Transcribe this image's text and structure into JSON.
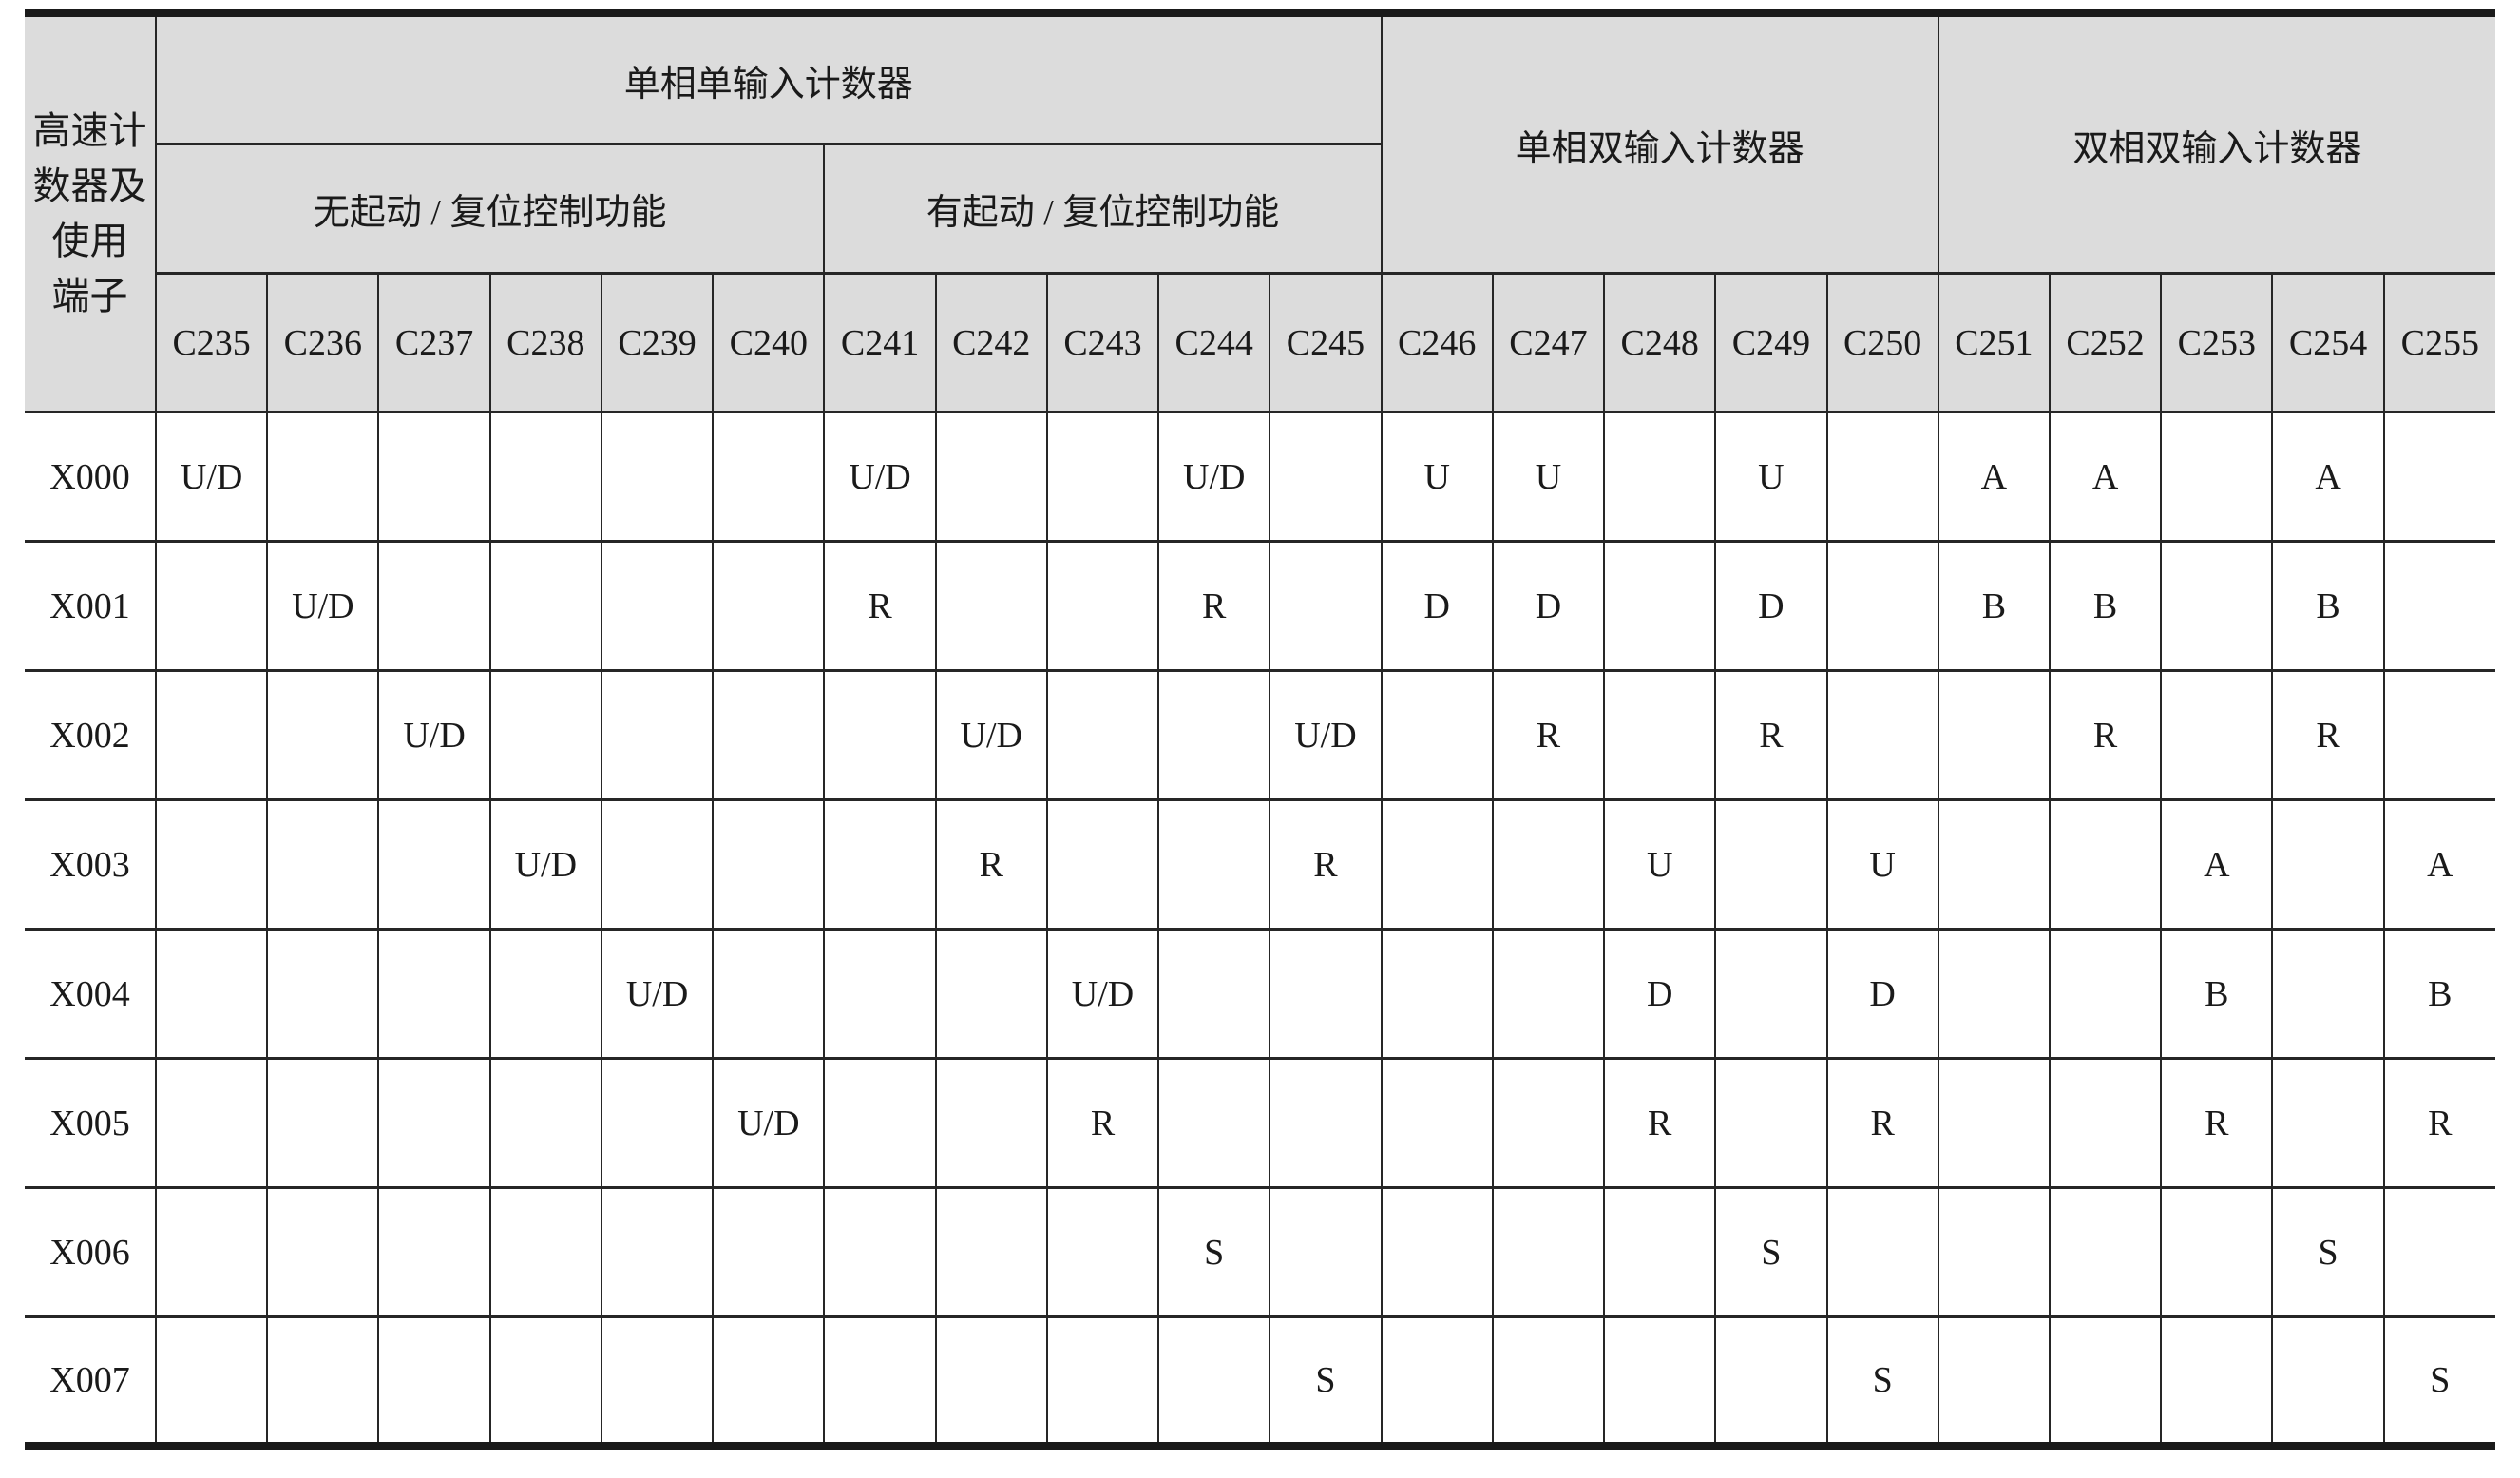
{
  "table": {
    "corner": {
      "lines": [
        "高速计",
        "数器及",
        "使用",
        "端子"
      ]
    },
    "groups": [
      {
        "label": "单相单输入计数器"
      },
      {
        "label": "单相双输入计数器"
      },
      {
        "label": "双相双输入计数器"
      }
    ],
    "subgroups": [
      {
        "label": "无起动 / 复位控制功能"
      },
      {
        "label": "有起动 / 复位控制功能"
      }
    ],
    "columns": [
      "C235",
      "C236",
      "C237",
      "C238",
      "C239",
      "C240",
      "C241",
      "C242",
      "C243",
      "C244",
      "C245",
      "C246",
      "C247",
      "C248",
      "C249",
      "C250",
      "C251",
      "C252",
      "C253",
      "C254",
      "C255"
    ],
    "rows": [
      {
        "label": "X000",
        "values": [
          "U/D",
          "",
          "",
          "",
          "",
          "",
          "U/D",
          "",
          "",
          "U/D",
          "",
          "U",
          "U",
          "",
          "U",
          "",
          "A",
          "A",
          "",
          "A",
          ""
        ]
      },
      {
        "label": "X001",
        "values": [
          "",
          "U/D",
          "",
          "",
          "",
          "",
          "R",
          "",
          "",
          "R",
          "",
          "D",
          "D",
          "",
          "D",
          "",
          "B",
          "B",
          "",
          "B",
          ""
        ]
      },
      {
        "label": "X002",
        "values": [
          "",
          "",
          "U/D",
          "",
          "",
          "",
          "",
          "U/D",
          "",
          "",
          "U/D",
          "",
          "R",
          "",
          "R",
          "",
          "",
          "R",
          "",
          "R",
          ""
        ]
      },
      {
        "label": "X003",
        "values": [
          "",
          "",
          "",
          "U/D",
          "",
          "",
          "",
          "R",
          "",
          "",
          "R",
          "",
          "",
          "U",
          "",
          "U",
          "",
          "",
          "A",
          "",
          "A"
        ]
      },
      {
        "label": "X004",
        "values": [
          "",
          "",
          "",
          "",
          "U/D",
          "",
          "",
          "",
          "U/D",
          "",
          "",
          "",
          "",
          "D",
          "",
          "D",
          "",
          "",
          "B",
          "",
          "B"
        ]
      },
      {
        "label": "X005",
        "values": [
          "",
          "",
          "",
          "",
          "",
          "U/D",
          "",
          "",
          "R",
          "",
          "",
          "",
          "",
          "R",
          "",
          "R",
          "",
          "",
          "R",
          "",
          "R"
        ]
      },
      {
        "label": "X006",
        "values": [
          "",
          "",
          "",
          "",
          "",
          "",
          "",
          "",
          "",
          "S",
          "",
          "",
          "",
          "",
          "S",
          "",
          "",
          "",
          "",
          "S",
          ""
        ]
      },
      {
        "label": "X007",
        "values": [
          "",
          "",
          "",
          "",
          "",
          "",
          "",
          "",
          "",
          "",
          "S",
          "",
          "",
          "",
          "",
          "S",
          "",
          "",
          "",
          "",
          "S"
        ]
      }
    ]
  },
  "colors": {
    "header_bg": "#dcdcdc",
    "line": "#262626",
    "thick_line": "#1a1a1a",
    "text": "#1a1a1a",
    "page_bg": "#ffffff"
  }
}
